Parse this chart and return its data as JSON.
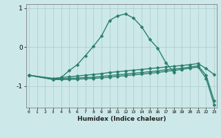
{
  "xlabel": "Humidex (Indice chaleur)",
  "line_color": "#2a7f6f",
  "bg_color": "#cce8e8",
  "grid_color": "#b0d0d0",
  "ylim": [
    -1.55,
    1.1
  ],
  "yticks": [
    -1,
    0,
    1
  ],
  "xlim": [
    -0.3,
    23.3
  ],
  "linewidth": 1.0,
  "markersize": 2.5,
  "line1_x": [
    0,
    3,
    4,
    5,
    6,
    7,
    8,
    9,
    10,
    11,
    12,
    13,
    14,
    15,
    16,
    17,
    18
  ],
  "line1_y": [
    -0.72,
    -0.82,
    -0.78,
    -0.6,
    -0.45,
    -0.22,
    0.02,
    0.28,
    0.68,
    0.8,
    0.85,
    0.74,
    0.52,
    0.2,
    -0.03,
    -0.4,
    -0.65
  ],
  "line2_x": [
    0,
    3,
    4,
    5,
    6,
    7,
    8,
    9,
    10,
    11,
    12,
    13,
    14,
    15,
    16,
    17,
    18,
    19,
    20,
    21,
    22,
    23
  ],
  "line2_y": [
    -0.72,
    -0.8,
    -0.78,
    -0.76,
    -0.74,
    -0.72,
    -0.7,
    -0.68,
    -0.65,
    -0.63,
    -0.61,
    -0.59,
    -0.57,
    -0.55,
    -0.53,
    -0.51,
    -0.49,
    -0.47,
    -0.45,
    -0.42,
    -0.55,
    -0.7
  ],
  "line3_x": [
    0,
    3,
    4,
    5,
    6,
    7,
    8,
    9,
    10,
    11,
    12,
    13,
    14,
    15,
    16,
    17,
    18,
    19,
    20,
    21,
    22,
    23
  ],
  "line3_y": [
    -0.72,
    -0.82,
    -0.81,
    -0.8,
    -0.79,
    -0.78,
    -0.77,
    -0.75,
    -0.73,
    -0.71,
    -0.69,
    -0.67,
    -0.65,
    -0.63,
    -0.61,
    -0.58,
    -0.56,
    -0.54,
    -0.51,
    -0.48,
    -0.72,
    -1.38
  ],
  "line4_x": [
    0,
    3,
    4,
    5,
    6,
    7,
    8,
    9,
    10,
    11,
    12,
    13,
    14,
    15,
    16,
    17,
    18,
    19,
    20,
    21,
    22,
    23
  ],
  "line4_y": [
    -0.72,
    -0.83,
    -0.83,
    -0.83,
    -0.82,
    -0.81,
    -0.8,
    -0.79,
    -0.77,
    -0.75,
    -0.73,
    -0.71,
    -0.69,
    -0.67,
    -0.65,
    -0.62,
    -0.6,
    -0.57,
    -0.54,
    -0.51,
    -0.8,
    -1.48
  ]
}
